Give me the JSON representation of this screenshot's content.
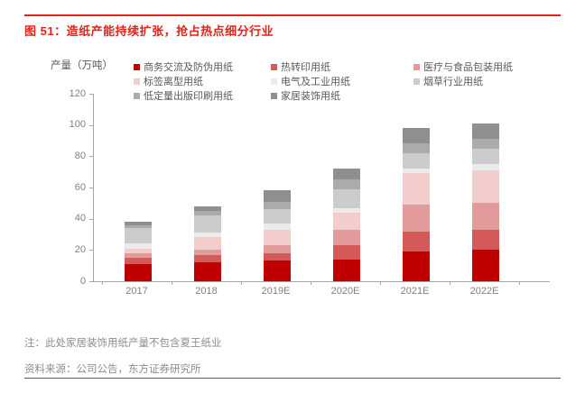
{
  "page": {
    "title": "图 51：造纸产能持续扩张，抢占热点细分行业",
    "note": "注：此处家居装饰用纸产量不包含夏王纸业",
    "source": "资料来源：公司公告，东方证券研究所",
    "accent_red": "#e2231a",
    "axis_color": "#a6a6a6",
    "tick_label_color": "#808080",
    "legend_text_color": "#595959"
  },
  "chart_data": {
    "type": "bar",
    "stacked": true,
    "title": "图 51：造纸产能持续扩张，抢占热点细分行业",
    "ylabel": "产量（万吨）",
    "xlabel": "",
    "ylim": [
      0,
      120
    ],
    "yticks": [
      0,
      20,
      40,
      60,
      80,
      100,
      120
    ],
    "grid": false,
    "legend_position": "top",
    "categories": [
      "2017",
      "2018",
      "2019E",
      "2020E",
      "2021E",
      "2022E"
    ],
    "series": [
      {
        "name": "商务交流及防伪用纸",
        "color": "#c00000",
        "values": [
          11,
          12,
          13,
          14,
          19,
          20
        ]
      },
      {
        "name": "热转印用纸",
        "color": "#d45a5a",
        "values": [
          4,
          5,
          5,
          9,
          13,
          13
        ]
      },
      {
        "name": "医疗与食品包装用纸",
        "color": "#e29a9a",
        "values": [
          3,
          3,
          5,
          10,
          17,
          17
        ]
      },
      {
        "name": "标签离型用纸",
        "color": "#f3cccc",
        "values": [
          3,
          8,
          10,
          11,
          20,
          21
        ]
      },
      {
        "name": "电气及工业用纸",
        "color": "#ebebeb",
        "values": [
          3,
          3,
          4,
          3,
          3,
          4
        ]
      },
      {
        "name": "烟草行业用纸",
        "color": "#cccccc",
        "values": [
          10,
          11,
          9,
          12,
          10,
          10
        ]
      },
      {
        "name": "低定量出版印刷用纸",
        "color": "#ababab",
        "values": [
          2,
          3,
          5,
          6,
          6,
          6
        ]
      },
      {
        "name": "家居装饰用纸",
        "color": "#8f8f8f",
        "values": [
          2,
          3,
          7,
          7,
          10,
          10
        ]
      }
    ],
    "totals": [
      38,
      48,
      58,
      72,
      98,
      101
    ]
  }
}
